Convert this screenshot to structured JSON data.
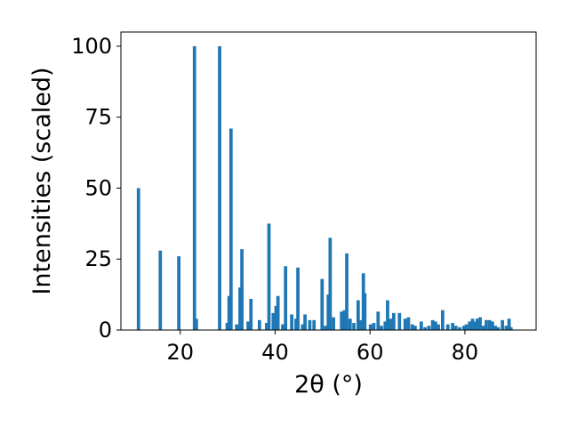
{
  "chart_data": {
    "type": "bar",
    "xlabel": "2θ (°)",
    "ylabel": "Intensities (scaled)",
    "xlim": [
      7.5,
      95
    ],
    "ylim": [
      0,
      105
    ],
    "grid": false,
    "bar_color": "#1f77b4",
    "bar_width": 0.7,
    "xticks": [
      20,
      40,
      60,
      80
    ],
    "yticks": [
      0,
      25,
      50,
      75,
      100
    ],
    "x": [
      11.2,
      15.8,
      19.7,
      23.0,
      23.4,
      28.3,
      29.9,
      30.3,
      30.7,
      31.9,
      32.6,
      33.0,
      34.3,
      34.9,
      36.7,
      38.2,
      38.7,
      39.6,
      40.2,
      40.6,
      41.6,
      42.2,
      43.5,
      44.4,
      44.8,
      45.8,
      46.3,
      47.3,
      48.2,
      49.9,
      50.6,
      51.2,
      51.6,
      52.3,
      54.0,
      54.6,
      55.1,
      55.8,
      56.6,
      57.5,
      58.1,
      58.6,
      58.9,
      60.1,
      60.8,
      61.7,
      62.4,
      63.2,
      63.7,
      64.3,
      65.0,
      66.2,
      67.4,
      68.1,
      68.9,
      69.5,
      70.8,
      71.6,
      72.4,
      73.2,
      73.8,
      74.4,
      75.3,
      76.4,
      77.4,
      78.1,
      78.9,
      79.8,
      80.3,
      81.0,
      81.6,
      82.1,
      82.6,
      83.2,
      83.9,
      84.5,
      85.2,
      85.8,
      86.4,
      87.0,
      87.9,
      88.7,
      89.3,
      89.7
    ],
    "values": [
      50,
      28,
      26,
      100,
      4,
      100,
      2.5,
      12,
      71,
      2,
      15,
      28.5,
      3,
      11,
      3.5,
      2.5,
      37.5,
      6,
      8.5,
      12,
      2,
      22.5,
      5.5,
      4,
      22,
      2,
      5.5,
      3.5,
      3.5,
      18,
      1.5,
      12.5,
      32.5,
      4.5,
      6.5,
      7,
      27,
      4,
      2.5,
      10.5,
      3.5,
      20,
      13,
      2,
      2.5,
      6.5,
      1.5,
      3,
      10.5,
      4,
      6,
      6,
      4,
      4.5,
      2,
      1.5,
      3,
      1,
      1.5,
      3.5,
      3,
      2,
      7,
      2,
      2.5,
      1.5,
      1,
      1.5,
      2,
      3,
      4,
      3,
      4,
      4.5,
      1.5,
      3.5,
      3.5,
      3,
      1.5,
      1,
      3.5,
      1.5,
      4,
      1
    ]
  }
}
